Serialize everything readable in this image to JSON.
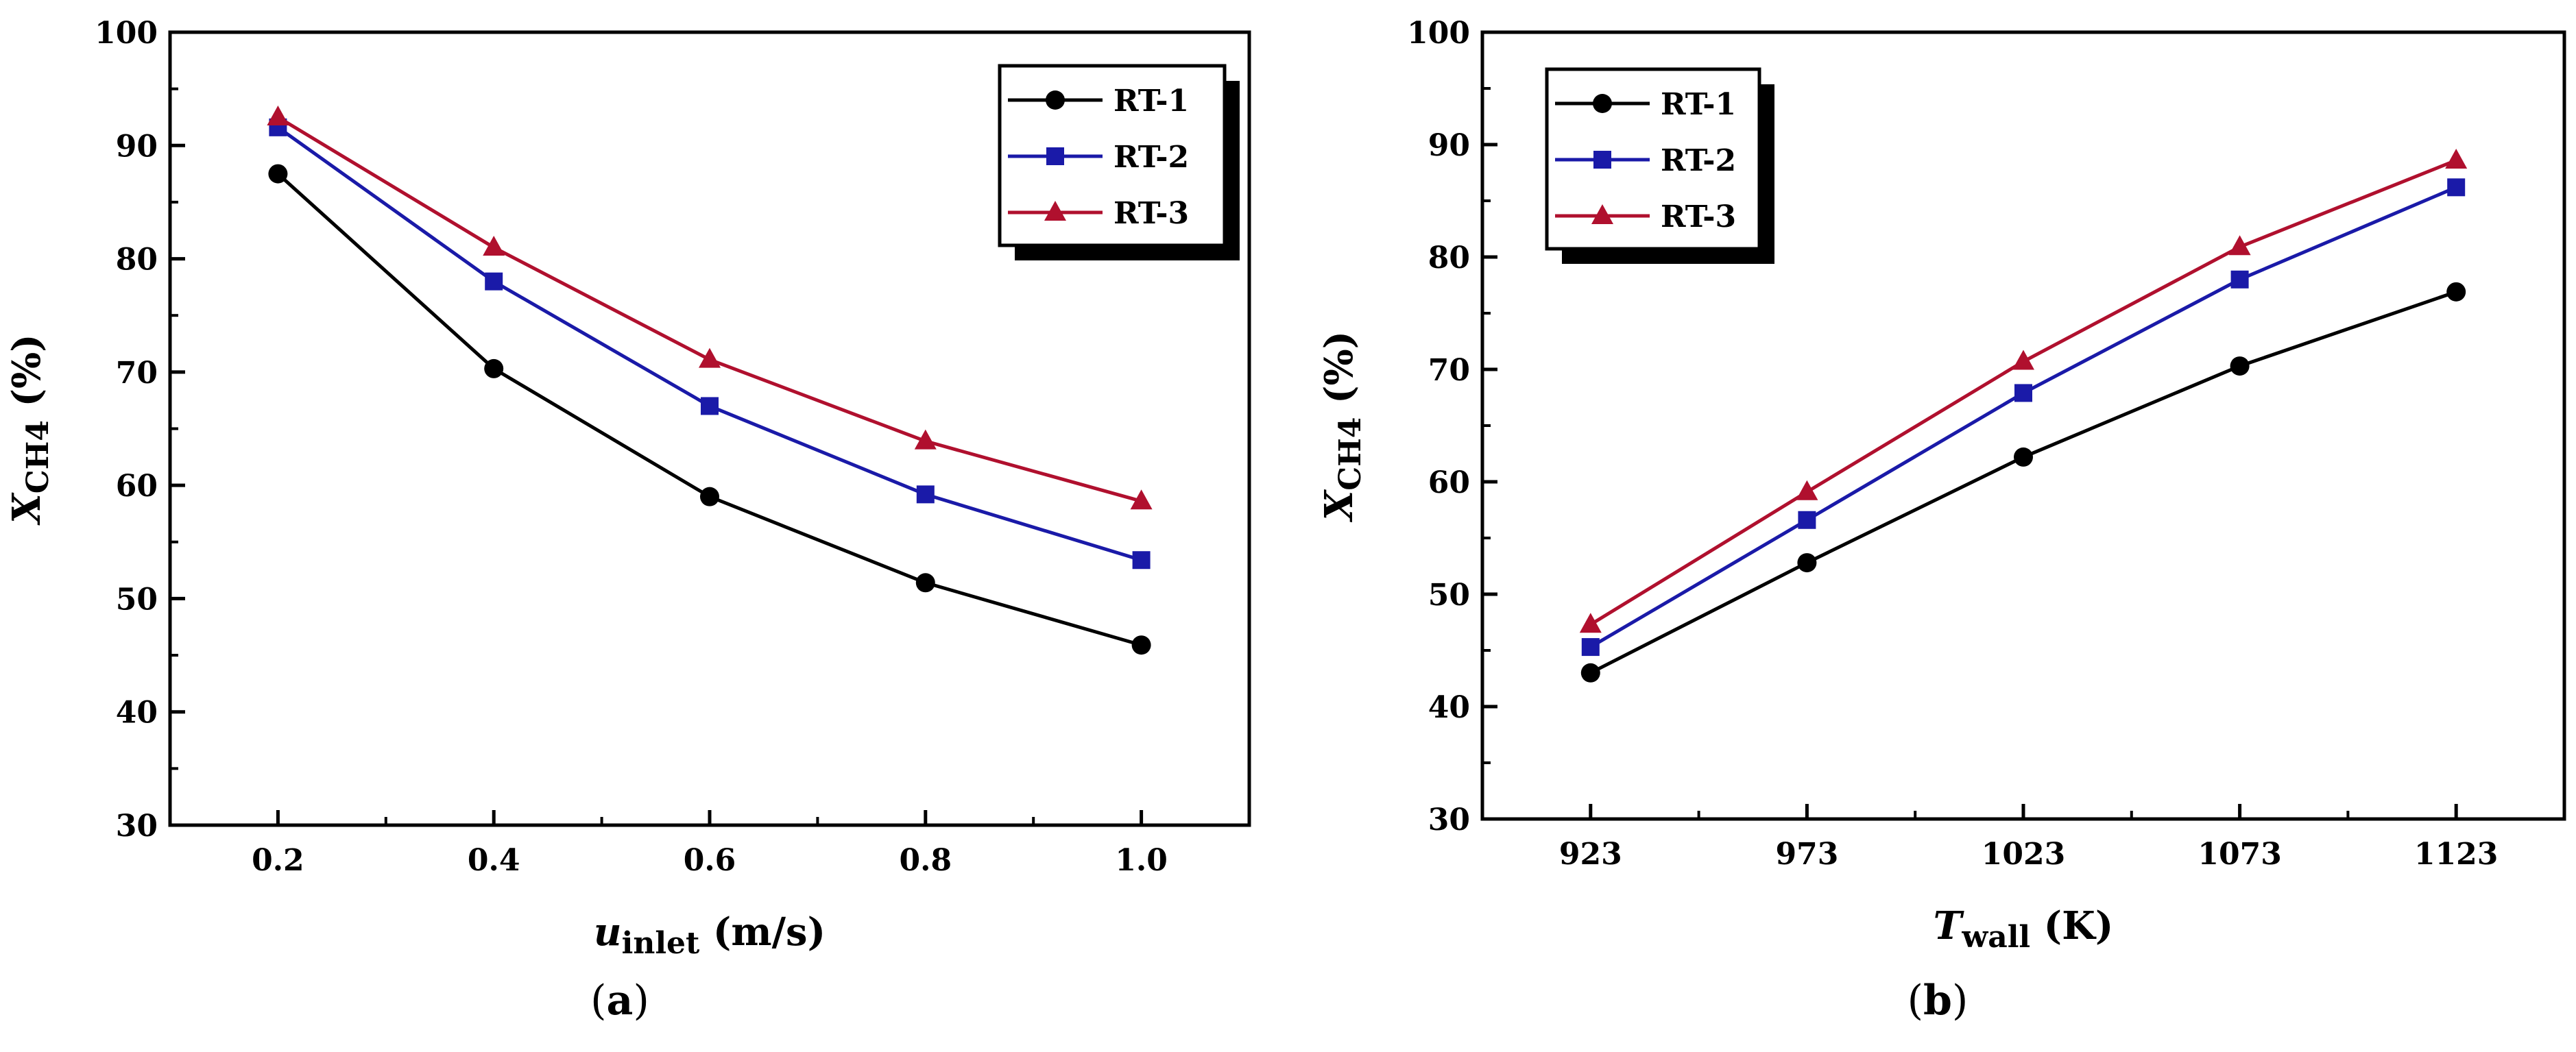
{
  "chart_data": [
    {
      "type": "line",
      "panel_label": {
        "open": "(",
        "letter": "a",
        "close": ")"
      },
      "xlabel": {
        "main": "u",
        "sub": "inlet",
        "unit": " (m/s)"
      },
      "ylabel": {
        "main": "X",
        "sub": "CH4",
        "unit": " (%)"
      },
      "x": [
        0.2,
        0.4,
        0.6,
        0.8,
        1.0
      ],
      "xticks": [
        "0.2",
        "0.4",
        "0.6",
        "0.8",
        "1.0"
      ],
      "xlim": [
        0.1,
        1.1
      ],
      "ylim": [
        30,
        100
      ],
      "yticks": [
        "30",
        "40",
        "50",
        "60",
        "70",
        "80",
        "90",
        "100"
      ],
      "legend_position": "top-right",
      "grid": false,
      "series": [
        {
          "name": "RT-1",
          "color": "#000000",
          "marker": "circle",
          "values": [
            87.5,
            70.3,
            59.0,
            51.4,
            45.9
          ]
        },
        {
          "name": "RT-2",
          "color": "#1a1aa8",
          "marker": "square",
          "values": [
            91.6,
            78.0,
            67.0,
            59.2,
            53.4
          ]
        },
        {
          "name": "RT-3",
          "color": "#b0102e",
          "marker": "triangle",
          "values": [
            92.5,
            81.0,
            71.1,
            63.9,
            58.6
          ]
        }
      ]
    },
    {
      "type": "line",
      "panel_label": {
        "open": "(",
        "letter": "b",
        "close": ")"
      },
      "xlabel": {
        "main": "T",
        "sub": "wall",
        "unit": " (K)"
      },
      "ylabel": {
        "main": "X",
        "sub": "CH4",
        "unit": " (%)"
      },
      "x": [
        923,
        973,
        1023,
        1073,
        1123
      ],
      "xticks": [
        "923",
        "973",
        "1023",
        "1073",
        "1123"
      ],
      "xlim": [
        898,
        1148
      ],
      "ylim": [
        30,
        100
      ],
      "yticks": [
        "30",
        "40",
        "50",
        "60",
        "70",
        "80",
        "90",
        "100"
      ],
      "legend_position": "top-left",
      "grid": false,
      "series": [
        {
          "name": "RT-1",
          "color": "#000000",
          "marker": "circle",
          "values": [
            43.0,
            52.8,
            62.2,
            70.3,
            76.9
          ]
        },
        {
          "name": "RT-2",
          "color": "#1a1aa8",
          "marker": "square",
          "values": [
            45.3,
            56.6,
            67.9,
            78.0,
            86.2
          ]
        },
        {
          "name": "RT-3",
          "color": "#b0102e",
          "marker": "triangle",
          "values": [
            47.3,
            59.1,
            70.7,
            80.9,
            88.6
          ]
        }
      ]
    }
  ]
}
